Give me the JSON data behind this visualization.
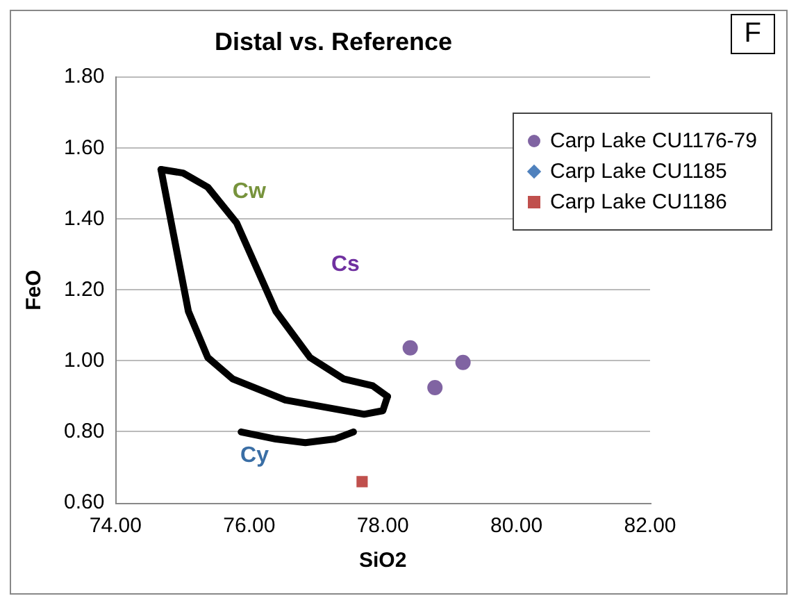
{
  "chart_data": {
    "type": "scatter",
    "title": "Distal vs. Reference",
    "xlabel": "SiO2",
    "ylabel": "FeO",
    "xlim": [
      74,
      82
    ],
    "xticks": [
      {
        "value": 74,
        "label": "74.00"
      },
      {
        "value": 76,
        "label": "76.00"
      },
      {
        "value": 78,
        "label": "78.00"
      },
      {
        "value": 80,
        "label": "80.00"
      },
      {
        "value": 82,
        "label": "82.00"
      }
    ],
    "ylim": [
      0.6,
      1.8
    ],
    "yticks": [
      {
        "value": 0.6,
        "label": "0.60"
      },
      {
        "value": 0.8,
        "label": "0.80"
      },
      {
        "value": 1.0,
        "label": "1.00"
      },
      {
        "value": 1.2,
        "label": "1.20"
      },
      {
        "value": 1.4,
        "label": "1.40"
      },
      {
        "value": 1.6,
        "label": "1.60"
      },
      {
        "value": 1.8,
        "label": "1.80"
      }
    ],
    "grid": "y",
    "legend": "top right",
    "series": [
      {
        "name": "Carp Lake CU1176-79",
        "color": "#8064a2",
        "marker": "circle",
        "x": [
          78.41,
          79.2,
          78.78
        ],
        "values": [
          1.037,
          0.996,
          0.925
        ]
      },
      {
        "name": "Carp Lake CU1185",
        "color": "#4f81bd",
        "marker": "diamond"
      },
      {
        "name": "Carp Lake CU1186",
        "color": "#c0504d",
        "marker": "square",
        "x": [
          77.69
        ],
        "values": [
          0.66
        ]
      },
      {
        "type": "line",
        "color": "#000000",
        "marker": "none",
        "x": [
          74.68,
          75.01,
          75.38,
          75.81,
          76.4,
          76.91,
          77.41,
          77.85,
          78.07
        ],
        "values": [
          1.54,
          1.53,
          1.49,
          1.39,
          1.14,
          1.01,
          0.95,
          0.93,
          0.9
        ]
      },
      {
        "type": "line",
        "color": "#000000",
        "marker": "none",
        "x": [
          74.68,
          75.09,
          75.38,
          75.75,
          76.54,
          77.72,
          78.0,
          78.07
        ],
        "values": [
          1.54,
          1.14,
          1.01,
          0.95,
          0.89,
          0.85,
          0.86,
          0.9
        ]
      },
      {
        "type": "line",
        "color": "#000000",
        "marker": "none",
        "x": [
          75.88,
          76.4,
          76.84,
          77.28,
          77.56
        ],
        "values": [
          0.8,
          0.78,
          0.77,
          0.78,
          0.8
        ]
      }
    ],
    "annotations": [
      "Cw",
      "Cs",
      "Cy",
      "F"
    ]
  }
}
